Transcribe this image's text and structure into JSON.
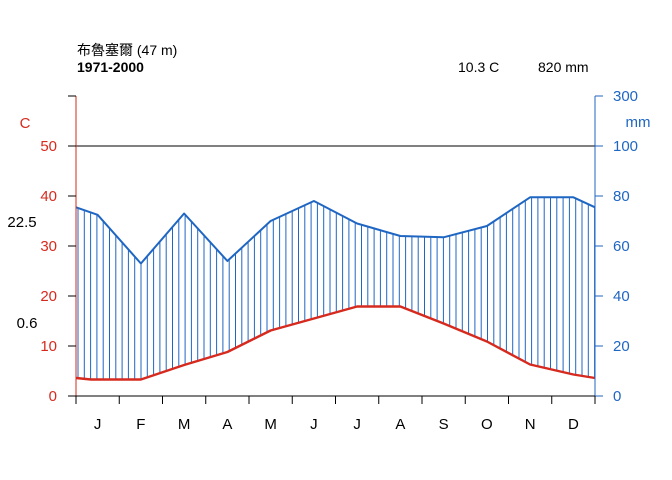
{
  "chart_data": {
    "type": "climate-diagram",
    "station": "布魯塞爾 (47 m)",
    "period": "1971-2000",
    "annual_mean_temp": "10.3 C",
    "annual_precip": "820 mm",
    "temp_axis_label": "C",
    "precip_axis_label": "mm",
    "side_labels": {
      "max_label": "22.5",
      "min_label": "0.6"
    },
    "months": [
      "J",
      "F",
      "M",
      "A",
      "M",
      "J",
      "J",
      "A",
      "S",
      "O",
      "N",
      "D"
    ],
    "temp_ticks": [
      0,
      10,
      20,
      30,
      40,
      50
    ],
    "precip_ticks": [
      0,
      20,
      40,
      60,
      80,
      100,
      300
    ],
    "temp_ylim": [
      0,
      60
    ],
    "precip_ylim": [
      0,
      120
    ],
    "precip_top_label": 300,
    "series": [
      {
        "name": "Temperature",
        "unit": "C",
        "color": "#d62a1e",
        "x": [
          0,
          0.35,
          1.5,
          2.5,
          3.5,
          4.5,
          5.5,
          6.5,
          7.5,
          8.5,
          9.5,
          10.5,
          11.5,
          12
        ],
        "values": [
          3.6,
          3.3,
          3.3,
          6.2,
          8.8,
          13.1,
          15.5,
          17.9,
          17.9,
          14.5,
          10.9,
          6.3,
          4.3,
          3.6
        ]
      },
      {
        "name": "Precipitation",
        "unit": "mm",
        "color": "#1f66c2",
        "x": [
          0,
          0.5,
          1.5,
          2.5,
          3.5,
          4.5,
          5.5,
          6.5,
          7.5,
          8.5,
          9.5,
          10.5,
          11.5,
          12
        ],
        "values": [
          75.5,
          72.5,
          53,
          73,
          54,
          70,
          78,
          69,
          64,
          63.5,
          68,
          79.5,
          79.5,
          75.5
        ]
      }
    ],
    "colors": {
      "temperature": "#d62a1e",
      "precipitation": "#1f66c2",
      "reference_line": "#000000"
    }
  }
}
